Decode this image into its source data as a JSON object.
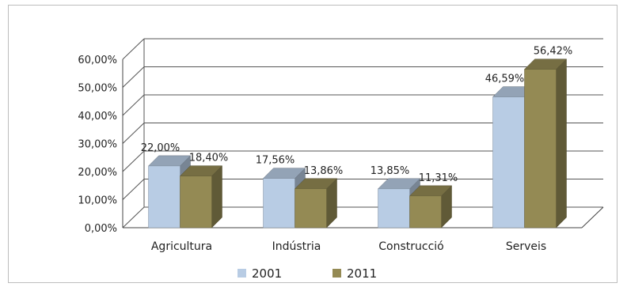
{
  "chart_data": {
    "type": "bar",
    "style": "3d-clustered-column",
    "categories": [
      "Agricultura",
      "Indústria",
      "Construcció",
      "Serveis"
    ],
    "series": [
      {
        "name": "2001",
        "color": "#b8cce4",
        "values": [
          22.0,
          17.56,
          13.85,
          46.59
        ],
        "labels": [
          "22,00%",
          "17,56%",
          "13,85%",
          "46,59%"
        ]
      },
      {
        "name": "2011",
        "color": "#948a54",
        "values": [
          18.4,
          13.86,
          11.31,
          56.42
        ],
        "labels": [
          "18,40%",
          "13,86%",
          "11,31%",
          "56,42%"
        ]
      }
    ],
    "yticks": [
      "0,00%",
      "10,00%",
      "20,00%",
      "30,00%",
      "40,00%",
      "50,00%",
      "60,00%"
    ],
    "ylim": [
      0,
      60
    ],
    "grid": true,
    "legend_position": "bottom"
  }
}
